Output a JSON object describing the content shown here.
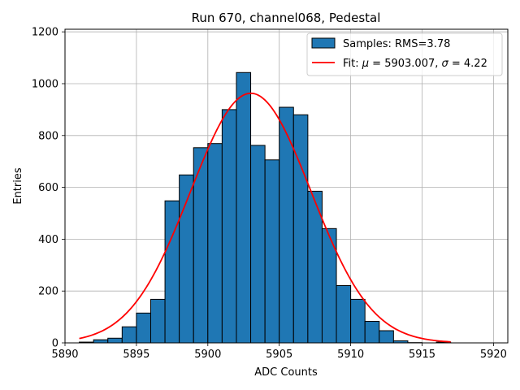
{
  "chart_data": {
    "type": "bar",
    "title": "Run 670, channel068, Pedestal",
    "xlabel": "ADC Counts",
    "ylabel": "Entries",
    "xlim": [
      5890,
      5921
    ],
    "ylim": [
      0,
      1210
    ],
    "xticks": [
      5890,
      5895,
      5900,
      5905,
      5910,
      5915,
      5920
    ],
    "yticks": [
      0,
      200,
      400,
      600,
      800,
      1000,
      1200
    ],
    "grid": true,
    "legend_placement": "top-right",
    "legend": {
      "hist_label": "Samples: RMS=3.78",
      "fit_prefix": "Fit: ",
      "fit_mu_symbol": "μ",
      "fit_mu_value": " = 5903.007, ",
      "fit_sigma_symbol": "σ",
      "fit_sigma_value": " = 4.22"
    },
    "histogram": {
      "name": "Samples: RMS=3.78",
      "bin_edges": [
        5891,
        5892,
        5893,
        5894,
        5895,
        5896,
        5897,
        5898,
        5899,
        5900,
        5901,
        5902,
        5903,
        5904,
        5905,
        5906,
        5907,
        5908,
        5909,
        5910,
        5911,
        5912,
        5913,
        5914,
        5915,
        5916,
        5917
      ],
      "counts": [
        3,
        12,
        18,
        62,
        115,
        168,
        548,
        648,
        753,
        769,
        900,
        1043,
        762,
        706,
        909,
        880,
        585,
        441,
        221,
        168,
        83,
        47,
        8,
        1,
        0,
        3
      ],
      "color": "#1f77b4",
      "edgecolor": "#000000"
    },
    "fit": {
      "name": "Fit",
      "mu": 5903.007,
      "sigma": 4.22,
      "amplitude": 963,
      "x_range": [
        5891,
        5917
      ],
      "color": "#ff0000"
    }
  }
}
